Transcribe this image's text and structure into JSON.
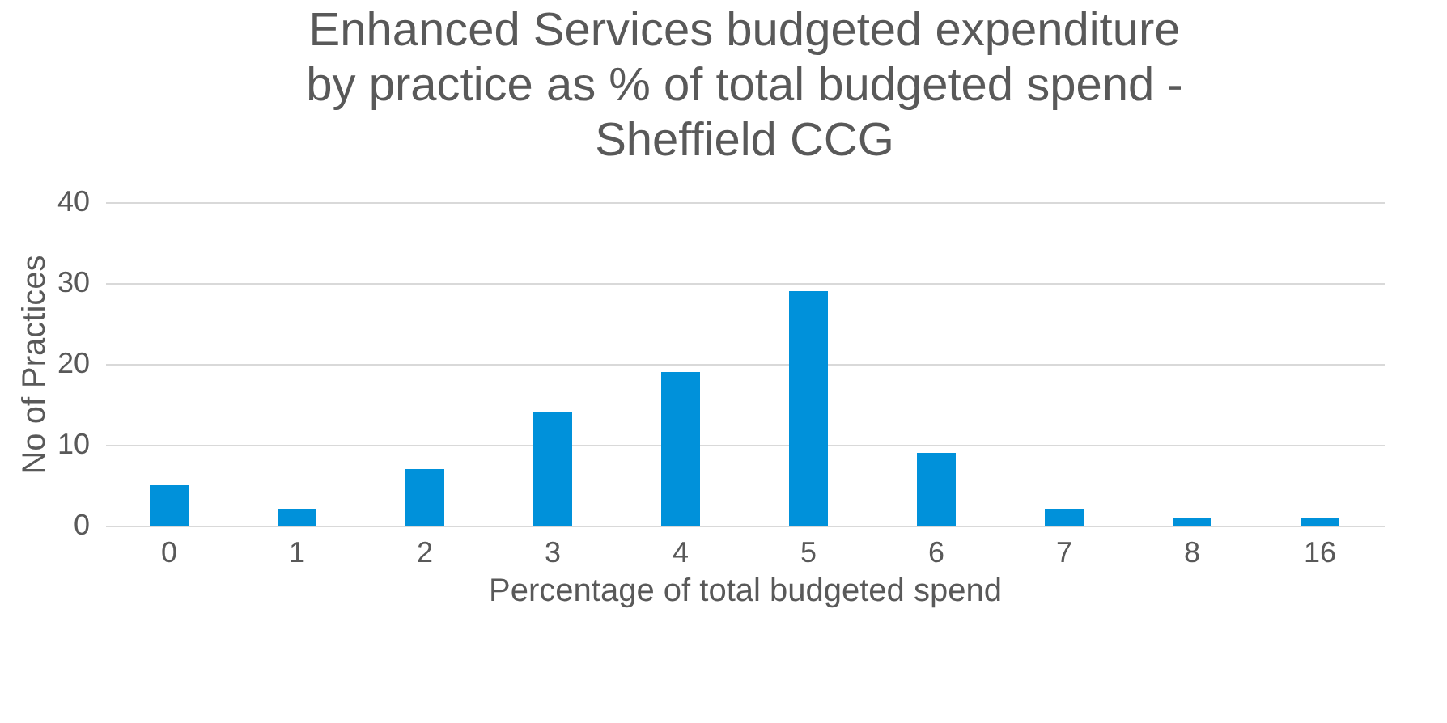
{
  "chart_data": {
    "type": "bar",
    "title": [
      "Enhanced Services budgeted expenditure",
      "by practice as % of total budgeted spend -",
      "Sheffield CCG"
    ],
    "xlabel": "Percentage of total budgeted spend",
    "ylabel": "No of Practices",
    "categories": [
      "0",
      "1",
      "2",
      "3",
      "4",
      "5",
      "6",
      "7",
      "8",
      "16"
    ],
    "values": [
      5,
      2,
      7,
      14,
      19,
      29,
      9,
      2,
      1,
      1
    ],
    "color": "#0091da",
    "ylim": [
      0,
      40
    ],
    "yticks": [
      0,
      10,
      20,
      30,
      40
    ],
    "grid": "y"
  }
}
